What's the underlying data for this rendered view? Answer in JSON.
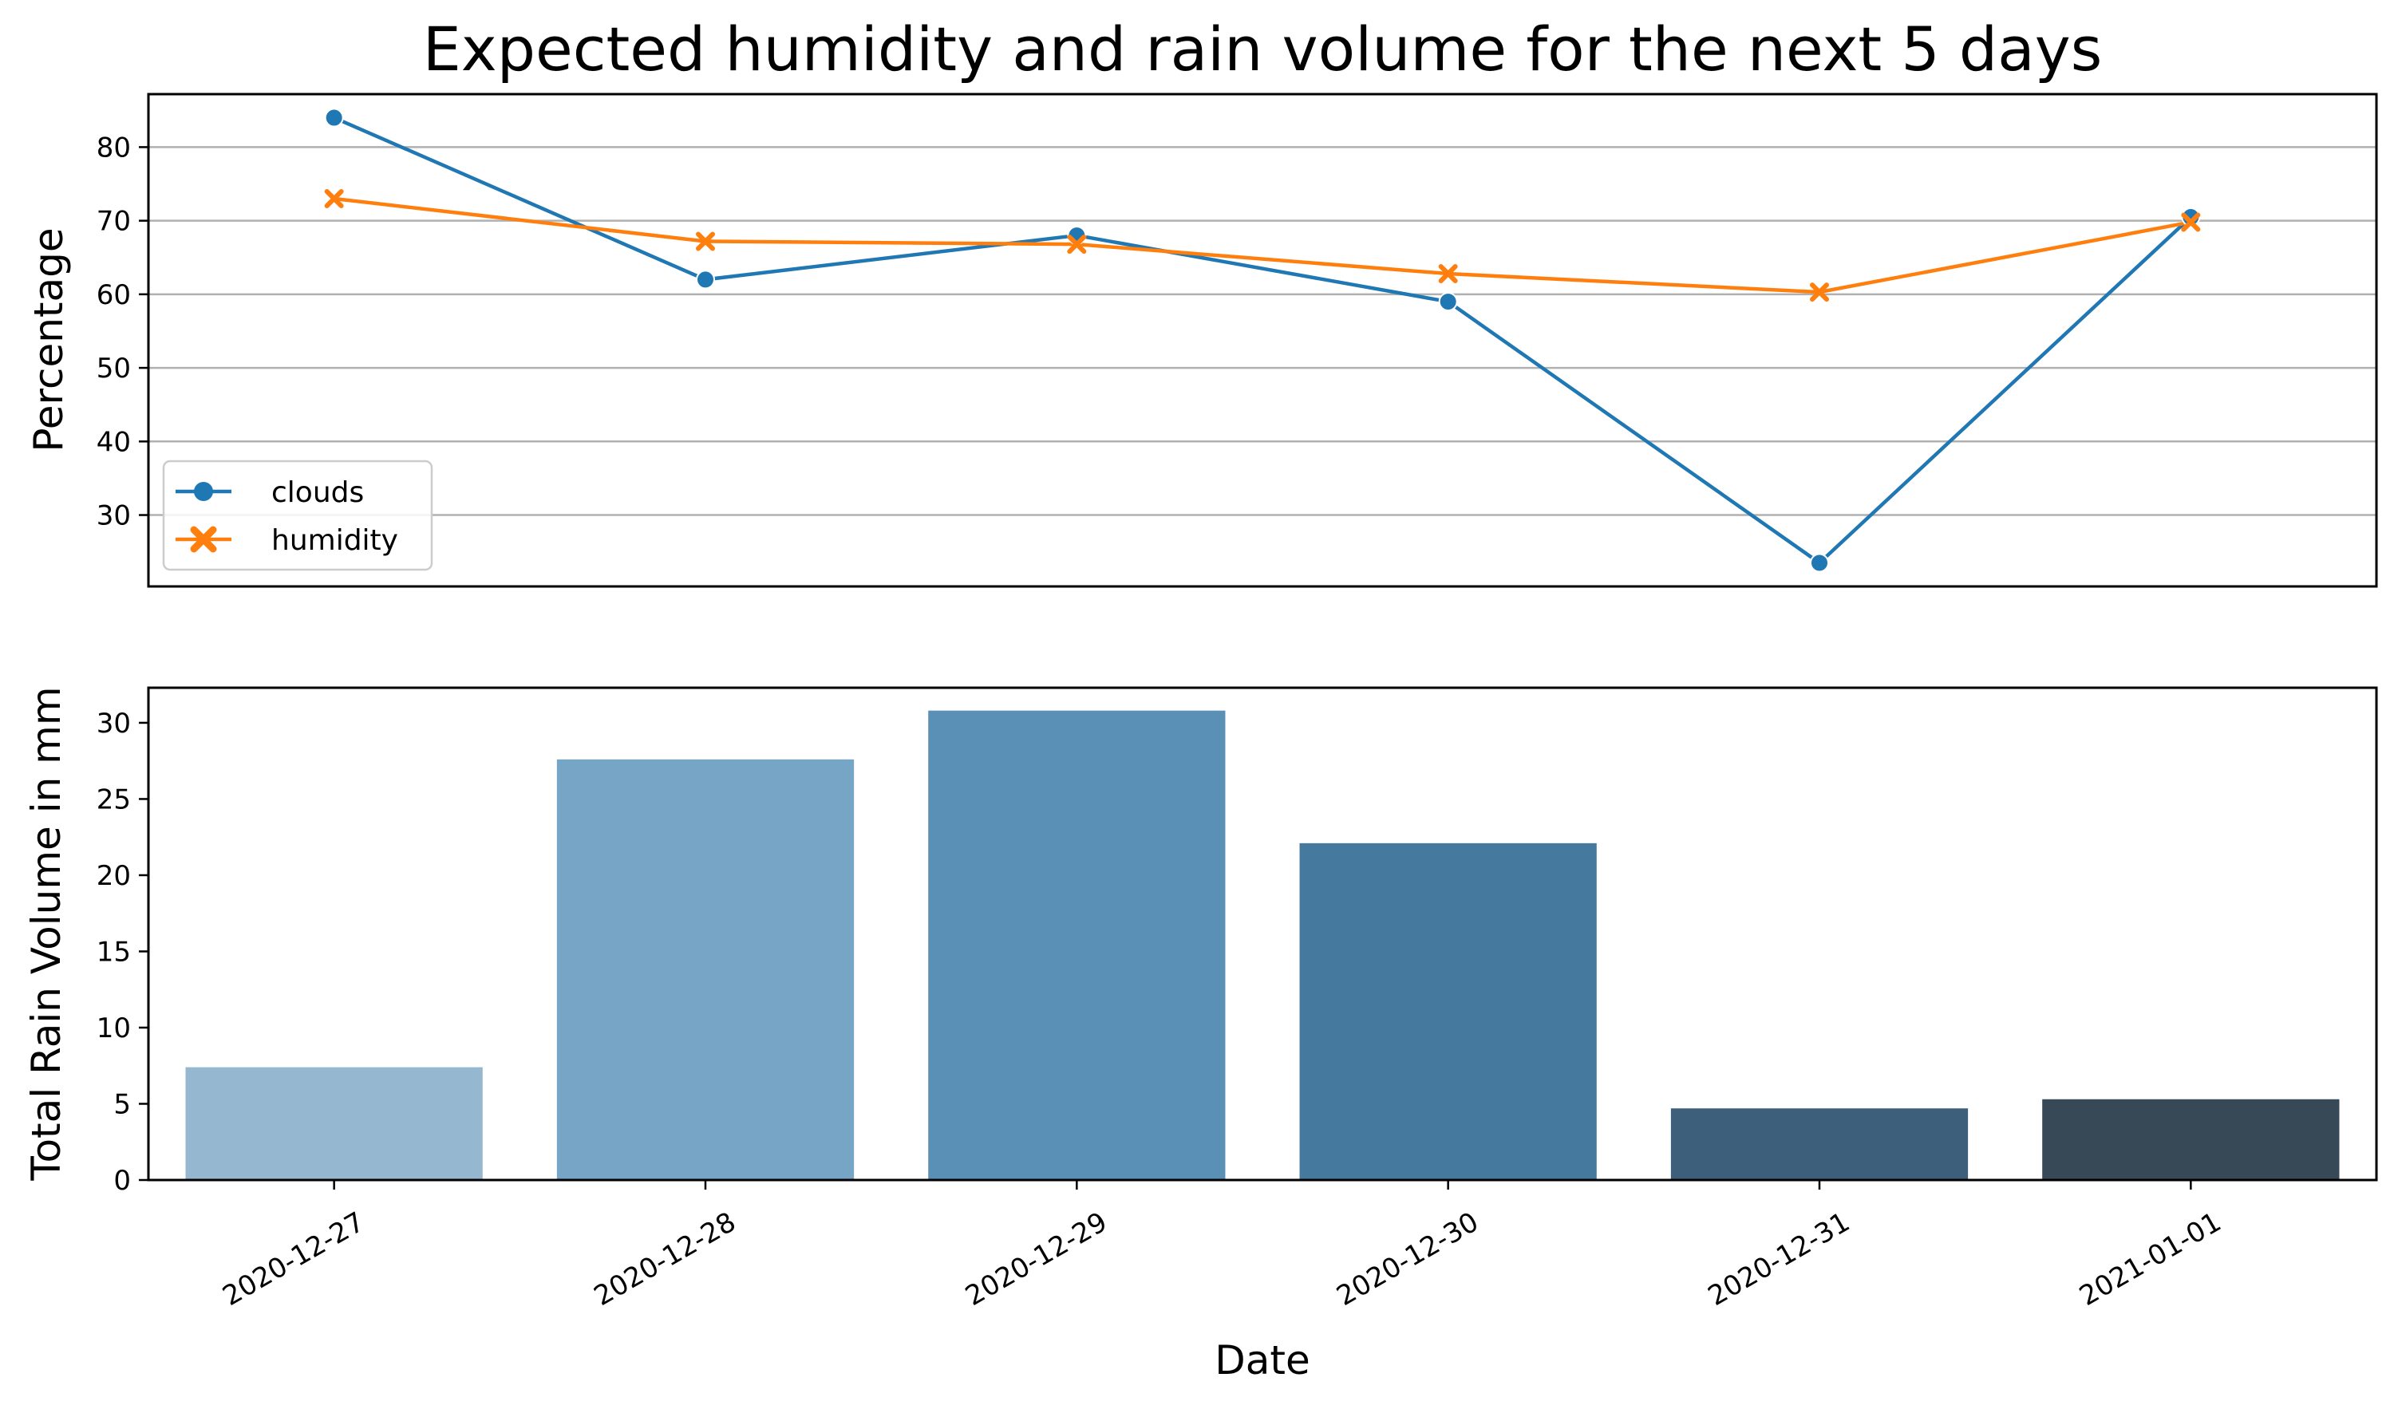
{
  "title": "Expected humidity and rain volume for the next 5 days",
  "chart_data": [
    {
      "type": "line",
      "x": [
        "2020-12-27",
        "2020-12-28",
        "2020-12-29",
        "2020-12-30",
        "2020-12-31",
        "2021-01-01"
      ],
      "series": [
        {
          "name": "clouds",
          "values": [
            84,
            62,
            68,
            59,
            23.5,
            70.5
          ],
          "color": "#1f77b4",
          "marker": "circle"
        },
        {
          "name": "humidity",
          "values": [
            73,
            67.2,
            66.8,
            62.8,
            60.3,
            69.8
          ],
          "color": "#ff7f0e",
          "marker": "x"
        }
      ],
      "xlabel": "",
      "ylabel": "Percentage",
      "ylim": [
        20.3,
        87.2
      ],
      "yticks": [
        30,
        40,
        50,
        60,
        70,
        80
      ],
      "grid": "horizontal",
      "legend": "bottom-left"
    },
    {
      "type": "bar",
      "categories": [
        "2020-12-27",
        "2020-12-28",
        "2020-12-29",
        "2020-12-30",
        "2020-12-31",
        "2021-01-01"
      ],
      "values": [
        7.4,
        27.6,
        30.8,
        22.1,
        4.7,
        5.3
      ],
      "colors": [
        "#95b7cf",
        "#77a5c5",
        "#5b90b6",
        "#45799d",
        "#3e5f7b",
        "#374857"
      ],
      "xlabel": "Date",
      "ylabel": "Total Rain Volume in mm",
      "ylim": [
        0,
        32.3
      ],
      "yticks": [
        0,
        5,
        10,
        15,
        20,
        25,
        30
      ],
      "grid": "off"
    }
  ]
}
